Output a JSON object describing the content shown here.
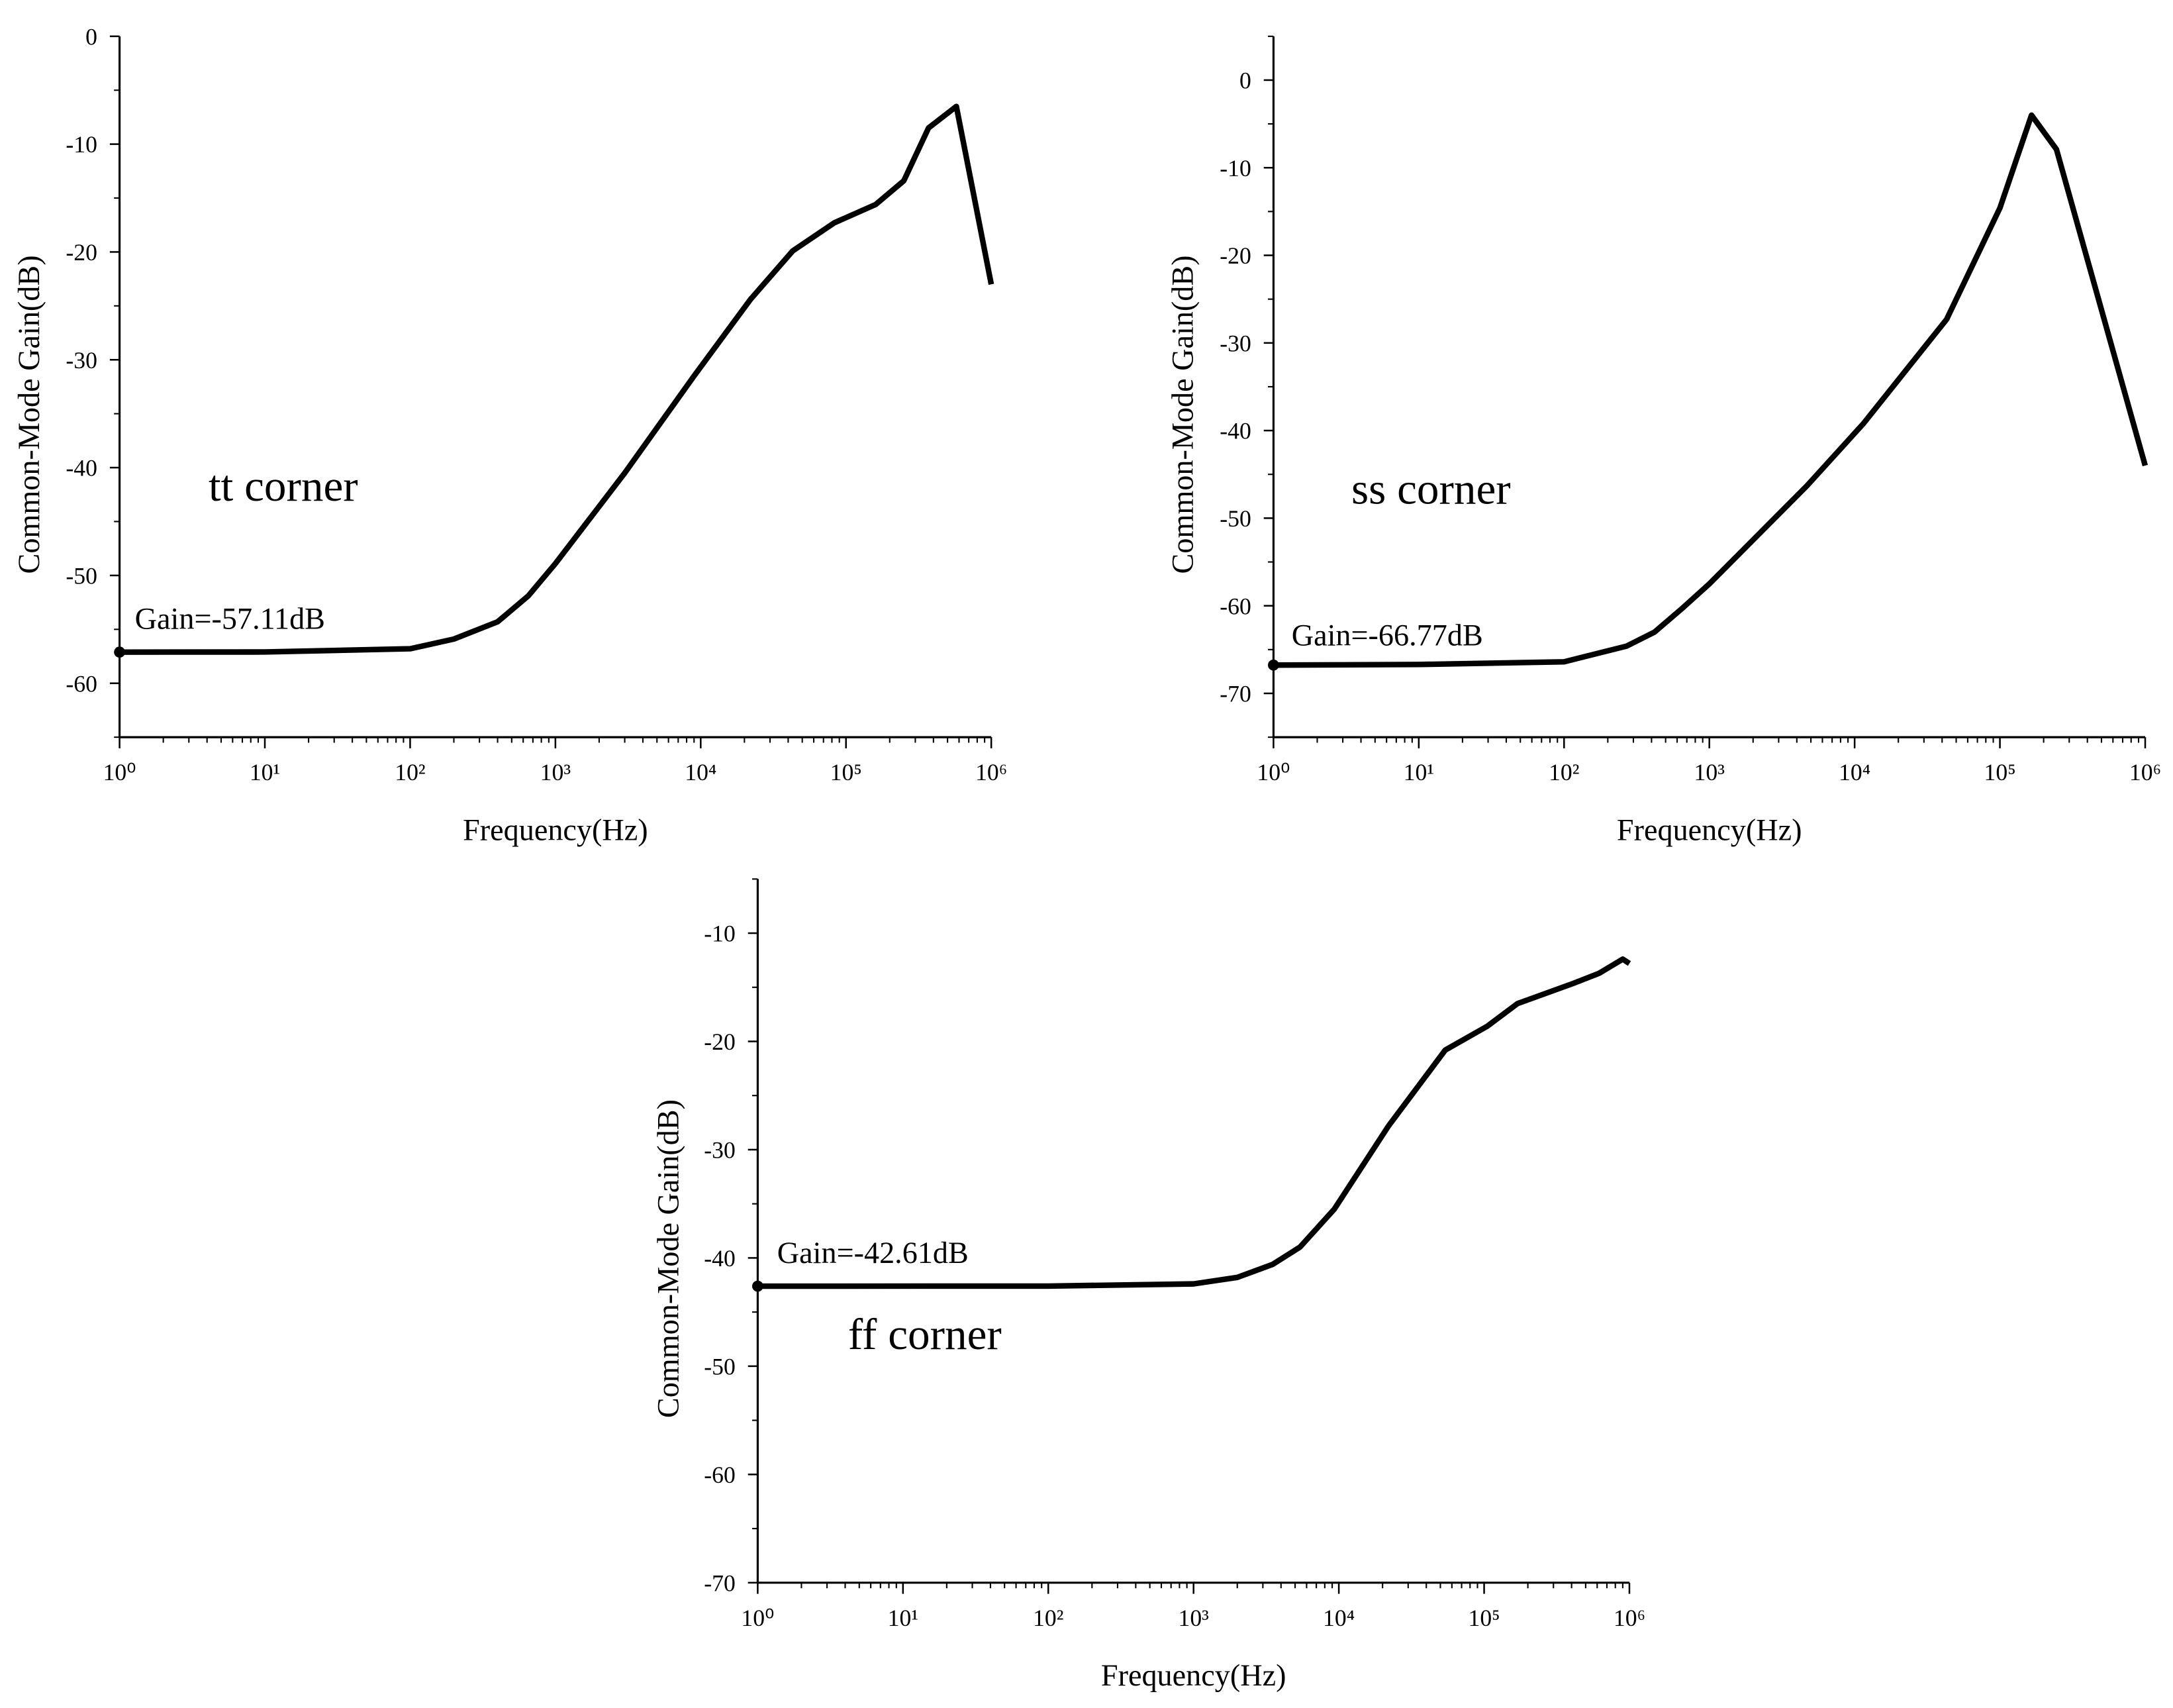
{
  "chart_data": [
    {
      "type": "line",
      "title": null,
      "xlabel": "Frequency(Hz)",
      "ylabel": "Common-Mode Gain(dB)",
      "annotations": [
        "tt corner",
        "Gain=-57.11dB"
      ],
      "xscale": "log",
      "xlim": [
        1,
        1000000
      ],
      "xticks": [
        {
          "value": 1,
          "label": "10⁰"
        },
        {
          "value": 10,
          "label": "10¹"
        },
        {
          "value": 100,
          "label": "10²"
        },
        {
          "value": 1000,
          "label": "10³"
        },
        {
          "value": 10000,
          "label": "10⁴"
        },
        {
          "value": 100000,
          "label": "10⁵"
        },
        {
          "value": 1000000,
          "label": "10⁶"
        }
      ],
      "ylim": [
        -65,
        0
      ],
      "yticks": [
        -60,
        -50,
        -40,
        -30,
        -20,
        -10,
        0
      ],
      "x": [
        1,
        10,
        100,
        200,
        400,
        650,
        1000,
        3000,
        9000,
        22000,
        43000,
        83000,
        160000,
        250000,
        370000,
        575000,
        1000000
      ],
      "series": [
        {
          "name": "tt",
          "color": "#000000",
          "values": [
            -57.11,
            -57.1,
            -56.8,
            -55.9,
            -54.3,
            -51.9,
            -48.9,
            -40.5,
            -31.5,
            -24.4,
            -19.9,
            -17.3,
            -15.6,
            -13.4,
            -8.5,
            -6.5,
            -23
          ]
        }
      ]
    },
    {
      "type": "line",
      "title": null,
      "xlabel": "Frequency(Hz)",
      "ylabel": "Common-Mode Gain(dB)",
      "annotations": [
        "ss corner",
        "Gain=-66.77dB"
      ],
      "xscale": "log",
      "xlim": [
        1,
        1000000
      ],
      "xticks": [
        {
          "value": 1,
          "label": "10⁰"
        },
        {
          "value": 10,
          "label": "10¹"
        },
        {
          "value": 100,
          "label": "10²"
        },
        {
          "value": 1000,
          "label": "10³"
        },
        {
          "value": 10000,
          "label": "10⁴"
        },
        {
          "value": 100000,
          "label": "10⁵"
        },
        {
          "value": 1000000,
          "label": "10⁶"
        }
      ],
      "ylim": [
        -75,
        5
      ],
      "yticks": [
        -70,
        -60,
        -50,
        -40,
        -30,
        -20,
        -10,
        0
      ],
      "x": [
        1,
        10,
        100,
        270,
        420,
        650,
        1000,
        4700,
        11500,
        43000,
        100000,
        165000,
        245000,
        1000000
      ],
      "series": [
        {
          "name": "ss",
          "color": "#000000",
          "values": [
            -66.77,
            -66.7,
            -66.4,
            -64.6,
            -63,
            -60.3,
            -57.5,
            -46.3,
            -39.2,
            -27.3,
            -14.6,
            -4,
            -7.9,
            -44
          ]
        }
      ]
    },
    {
      "type": "line",
      "title": null,
      "xlabel": "Frequency(Hz)",
      "ylabel": "Common-Mode Gain(dB)",
      "annotations": [
        "Gain=-42.61dB",
        "ff corner"
      ],
      "xscale": "log",
      "xlim": [
        1,
        1000000
      ],
      "xticks": [
        {
          "value": 1,
          "label": "10⁰"
        },
        {
          "value": 10,
          "label": "10¹"
        },
        {
          "value": 100,
          "label": "10²"
        },
        {
          "value": 1000,
          "label": "10³"
        },
        {
          "value": 10000,
          "label": "10⁴"
        },
        {
          "value": 100000,
          "label": "10⁵"
        },
        {
          "value": 1000000,
          "label": "10⁶"
        }
      ],
      "ylim": [
        -70,
        -5
      ],
      "yticks": [
        -70,
        -60,
        -50,
        -40,
        -30,
        -20,
        -10
      ],
      "x": [
        1,
        100,
        1000,
        2000,
        3500,
        5400,
        9300,
        22000,
        54000,
        105000,
        170000,
        400000,
        620000,
        900000,
        1000000
      ],
      "series": [
        {
          "name": "ff",
          "color": "#000000",
          "values": [
            -42.61,
            -42.6,
            -42.4,
            -41.8,
            -40.6,
            -39,
            -35.5,
            -27.8,
            -20.8,
            -18.6,
            -16.5,
            -14.7,
            -13.7,
            -12.4,
            -12.8
          ]
        }
      ]
    }
  ]
}
